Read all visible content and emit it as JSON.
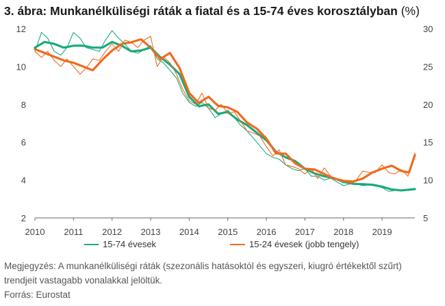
{
  "title": {
    "main": "3. ábra: Munkanélküliségi ráták a fiatal és a 15-74 éves korosztályban",
    "unit": "(%)"
  },
  "note": "Megjegyzés: A munkanélküliségi ráták (szezonális hatásoktól és egyszeri, kiugró értékektől szűrt) trendjeit vastagabb vonalakkal jelöltük.",
  "source": "Forrás: Eurostat",
  "chart_data": {
    "type": "line",
    "x_ticks": [
      "2010",
      "2011",
      "2012",
      "2013",
      "2014",
      "2015",
      "2016",
      "2017",
      "2018",
      "2019"
    ],
    "x_range": [
      2010,
      2019.85
    ],
    "y_left": {
      "range": [
        2,
        12
      ],
      "ticks": [
        2,
        4,
        6,
        8,
        10,
        12
      ]
    },
    "y_right": {
      "range": [
        5,
        30
      ],
      "ticks": [
        5,
        10,
        15,
        20,
        25,
        30
      ]
    },
    "grid": false,
    "legend_position": "bottom",
    "colors": {
      "green": "#1aaa7e",
      "orange": "#f06a1f"
    },
    "series": [
      {
        "name": "15-74 évesek",
        "axis": "left",
        "style": "trend",
        "color": "#1aaa7e",
        "x": [
          2010,
          2010.25,
          2010.5,
          2010.75,
          2011,
          2011.25,
          2011.5,
          2011.75,
          2012,
          2012.25,
          2012.5,
          2012.75,
          2013,
          2013.25,
          2013.5,
          2013.75,
          2014,
          2014.25,
          2014.5,
          2014.75,
          2015,
          2015.25,
          2015.5,
          2015.75,
          2016,
          2016.25,
          2016.5,
          2016.75,
          2017,
          2017.25,
          2017.5,
          2017.75,
          2018,
          2018.25,
          2018.5,
          2018.75,
          2019,
          2019.25,
          2019.5,
          2019.85
        ],
        "y": [
          11.0,
          11.3,
          11.2,
          11.0,
          11.1,
          11.1,
          11.0,
          11.0,
          11.3,
          11.1,
          10.8,
          10.85,
          11.0,
          10.5,
          10.1,
          9.6,
          8.4,
          7.9,
          8.0,
          7.5,
          7.6,
          7.2,
          6.9,
          6.5,
          6.1,
          5.5,
          5.2,
          5.0,
          4.6,
          4.35,
          4.2,
          4.1,
          3.9,
          3.8,
          3.78,
          3.75,
          3.65,
          3.5,
          3.45,
          3.52
        ]
      },
      {
        "name": "15-24 évesek (jobb tengely)",
        "axis": "right",
        "style": "trend",
        "color": "#f06a1f",
        "x": [
          2010,
          2010.25,
          2010.5,
          2010.75,
          2011,
          2011.25,
          2011.5,
          2011.75,
          2012,
          2012.25,
          2012.5,
          2012.75,
          2013,
          2013.25,
          2013.5,
          2013.75,
          2014,
          2014.25,
          2014.5,
          2014.75,
          2015,
          2015.25,
          2015.5,
          2015.75,
          2016,
          2016.25,
          2016.5,
          2016.75,
          2017,
          2017.25,
          2017.5,
          2017.75,
          2018,
          2018.25,
          2018.5,
          2018.75,
          2019,
          2019.25,
          2019.5,
          2019.7,
          2019.85
        ],
        "y": [
          27.3,
          26.8,
          26.3,
          25.8,
          25.5,
          25.0,
          24.5,
          25.9,
          27.1,
          28.0,
          28.2,
          28.6,
          27.5,
          26.0,
          26.8,
          24.8,
          21.5,
          20.2,
          21.0,
          19.8,
          19.6,
          19.0,
          17.6,
          16.8,
          15.5,
          13.5,
          13.5,
          12.2,
          11.5,
          11.4,
          10.8,
          10.2,
          9.9,
          9.8,
          10.2,
          11.0,
          11.5,
          11.9,
          11.2,
          11.0,
          13.3
        ]
      },
      {
        "name": "15-74 évesek",
        "axis": "left",
        "style": "raw",
        "color": "#1aaa7e",
        "x": [
          2010,
          2010.17,
          2010.33,
          2010.5,
          2010.67,
          2010.83,
          2011,
          2011.17,
          2011.33,
          2011.5,
          2011.67,
          2011.83,
          2012,
          2012.17,
          2012.33,
          2012.5,
          2012.67,
          2012.83,
          2013,
          2013.17,
          2013.33,
          2013.5,
          2013.67,
          2013.83,
          2014,
          2014.17,
          2014.33,
          2014.5,
          2014.67,
          2014.83,
          2015,
          2015.17,
          2015.33,
          2015.5,
          2015.67,
          2015.83,
          2016,
          2016.17,
          2016.33,
          2016.5,
          2016.67,
          2016.83,
          2017,
          2017.17,
          2017.33,
          2017.5,
          2017.67,
          2017.83,
          2018,
          2018.17,
          2018.33,
          2018.5,
          2018.67,
          2018.83,
          2019,
          2019.17,
          2019.33,
          2019.5,
          2019.67,
          2019.85
        ],
        "y": [
          10.8,
          11.8,
          11.5,
          10.8,
          10.6,
          11.0,
          11.8,
          11.5,
          11.0,
          10.9,
          10.8,
          11.4,
          11.9,
          11.5,
          11.2,
          10.8,
          10.7,
          10.9,
          11.1,
          10.4,
          10.2,
          9.8,
          9.4,
          8.6,
          8.1,
          7.9,
          8.1,
          7.8,
          7.3,
          7.5,
          7.7,
          7.3,
          6.9,
          6.6,
          6.2,
          5.8,
          5.4,
          5.2,
          5.1,
          4.8,
          4.6,
          4.5,
          4.6,
          4.2,
          4.2,
          4.0,
          4.1,
          3.9,
          3.7,
          3.8,
          3.8,
          3.7,
          3.75,
          3.7,
          3.6,
          3.4,
          3.45,
          3.45,
          3.5,
          3.52
        ]
      },
      {
        "name": "15-24 évesek (jobb tengely)",
        "axis": "right",
        "style": "raw",
        "color": "#f06a1f",
        "x": [
          2010,
          2010.17,
          2010.33,
          2010.5,
          2010.67,
          2010.83,
          2011,
          2011.17,
          2011.33,
          2011.5,
          2011.67,
          2011.83,
          2012,
          2012.17,
          2012.33,
          2012.5,
          2012.67,
          2012.83,
          2013,
          2013.17,
          2013.33,
          2013.5,
          2013.67,
          2013.83,
          2014,
          2014.17,
          2014.33,
          2014.5,
          2014.67,
          2014.83,
          2015,
          2015.17,
          2015.33,
          2015.5,
          2015.67,
          2015.83,
          2016,
          2016.17,
          2016.33,
          2016.5,
          2016.67,
          2016.83,
          2017,
          2017.17,
          2017.33,
          2017.5,
          2017.67,
          2017.83,
          2018,
          2018.17,
          2018.33,
          2018.5,
          2018.67,
          2018.83,
          2019,
          2019.17,
          2019.33,
          2019.5,
          2019.67,
          2019.85
        ],
        "y": [
          27.0,
          26.2,
          27.0,
          25.8,
          25.0,
          26.0,
          25.0,
          24.0,
          24.8,
          26.0,
          25.8,
          27.0,
          28.0,
          27.0,
          28.5,
          28.2,
          27.5,
          28.5,
          29.0,
          25.0,
          26.3,
          25.5,
          24.0,
          22.0,
          20.5,
          20.0,
          21.5,
          19.5,
          19.2,
          20.0,
          18.8,
          19.0,
          17.8,
          16.5,
          16.2,
          15.8,
          14.4,
          13.2,
          14.0,
          12.0,
          11.8,
          11.5,
          10.8,
          11.5,
          10.2,
          11.6,
          10.5,
          10.2,
          10.0,
          9.5,
          10.0,
          11.2,
          11.0,
          11.0,
          12.0,
          11.0,
          10.8,
          11.4,
          10.5,
          13.6
        ]
      }
    ]
  }
}
